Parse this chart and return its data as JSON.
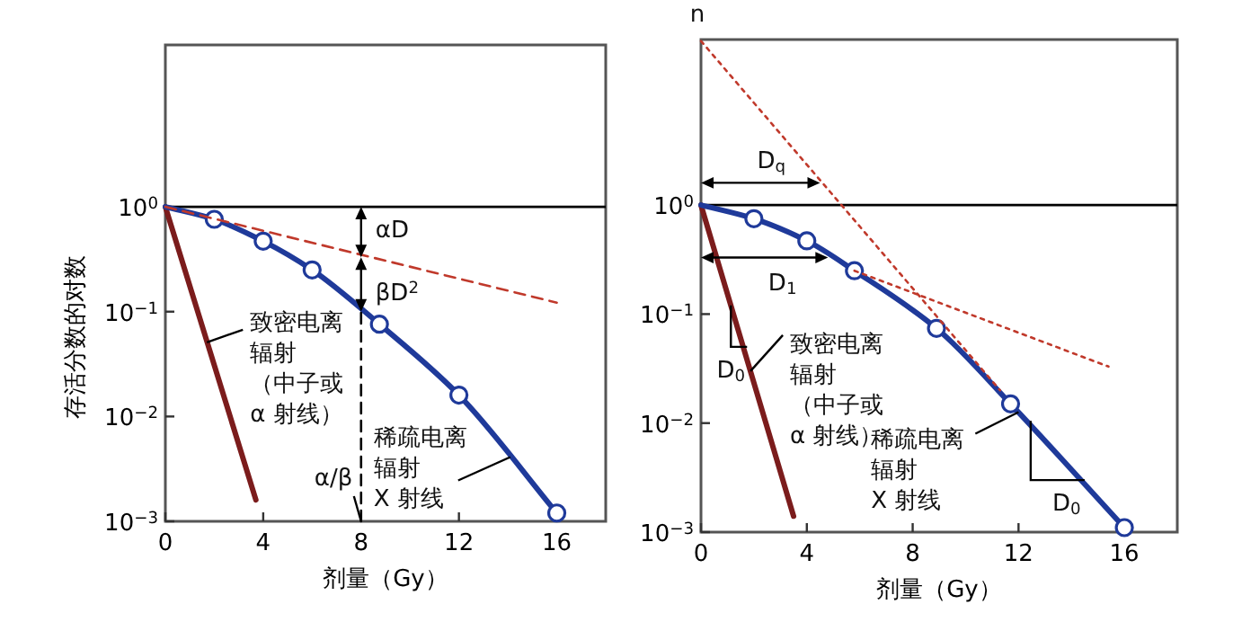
{
  "chart_data": [
    {
      "type": "line",
      "xlabel": "剂量（Gy）",
      "ylabel": "存活分数的对数",
      "log": "y",
      "xlim": [
        0,
        18
      ],
      "ylim": [
        0.001,
        35
      ],
      "xticks": [
        0,
        4,
        8,
        12,
        16
      ],
      "yticks": [
        {
          "value": 1,
          "label": "10$^{0}$"
        },
        {
          "value": 0.1,
          "label": "10$^{−1}$"
        },
        {
          "value": 0.01,
          "label": "10$^{−2}$"
        },
        {
          "value": 0.001,
          "label": "10$^{−3}$"
        }
      ],
      "ref_lines": [
        {
          "axis": "y",
          "value": 1,
          "color": "#000000",
          "line_style": "solid"
        }
      ],
      "series": [
        {
          "type": "line",
          "color": "#7b1c1c",
          "line_style": "solid",
          "x": [
            0,
            3.7
          ],
          "values": [
            1,
            0.0016
          ]
        },
        {
          "type": "line",
          "color": "#1f3a9a",
          "line_style": "solid",
          "x": [
            0,
            2,
            4,
            6,
            8.75,
            12,
            16
          ],
          "values": [
            1,
            0.76,
            0.47,
            0.25,
            0.076,
            0.016,
            0.0012
          ]
        },
        {
          "type": "scatter",
          "color": "#1f3a9a",
          "marker": "circle",
          "x": [
            2,
            4,
            6,
            8.75,
            12,
            16
          ],
          "values": [
            0.76,
            0.47,
            0.25,
            0.076,
            0.016,
            0.0012
          ]
        },
        {
          "type": "line",
          "color": "#c0392b",
          "line_style": "dashed",
          "x": [
            0,
            16
          ],
          "values": [
            1,
            0.122
          ]
        },
        {
          "type": "line",
          "color": "#000000",
          "line_style": "dashed",
          "x": [
            8,
            8
          ],
          "values": [
            0.001,
            0.1
          ]
        }
      ],
      "annotations": [
        {
          "text": "αD",
          "x": 8,
          "y": 0.33
        },
        {
          "text": "βD$^{2}$",
          "x": 8,
          "y": 0.1
        },
        {
          "text": "α/β",
          "x": 8,
          "y": 0.001
        },
        {
          "text": "致密电离辐射（中子或α 射线）",
          "x": 1.7,
          "y": 0.051
        },
        {
          "text": "稀疏电离辐射X 射线",
          "x": 14.1,
          "y": 0.0041
        }
      ]
    },
    {
      "type": "line",
      "xlabel": "剂量（Gy）",
      "log": "y",
      "xlim": [
        0,
        18
      ],
      "ylim": [
        0.001,
        33
      ],
      "xticks": [
        0,
        4,
        8,
        12,
        16
      ],
      "yticks": [
        {
          "value": 1,
          "label": "10$^{0}$"
        },
        {
          "value": 0.1,
          "label": "10$^{−1}$"
        },
        {
          "value": 0.01,
          "label": "10$^{−2}$"
        },
        {
          "value": 0.001,
          "label": "10$^{−3}$"
        }
      ],
      "ref_lines": [
        {
          "axis": "y",
          "value": 1,
          "color": "#000000",
          "line_style": "solid"
        }
      ],
      "series": [
        {
          "type": "line",
          "color": "#7b1c1c",
          "line_style": "solid",
          "x": [
            0,
            3.5
          ],
          "values": [
            1,
            0.0014
          ]
        },
        {
          "type": "line",
          "color": "#1f3a9a",
          "line_style": "solid",
          "x": [
            0,
            2,
            4,
            5.8,
            8.9,
            11.7,
            16
          ],
          "values": [
            1,
            0.75,
            0.47,
            0.25,
            0.074,
            0.015,
            0.0011
          ]
        },
        {
          "type": "scatter",
          "color": "#1f3a9a",
          "marker": "circle",
          "x": [
            2,
            4,
            5.8,
            8.9,
            11.7,
            16
          ],
          "values": [
            0.75,
            0.47,
            0.25,
            0.074,
            0.015,
            0.0011
          ]
        },
        {
          "type": "line",
          "color": "#c0392b",
          "line_style": "dotted",
          "x": [
            0,
            11.3
          ],
          "values": [
            32,
            0.02
          ]
        },
        {
          "type": "line",
          "color": "#c0392b",
          "line_style": "dotted",
          "x": [
            5.8,
            15.4
          ],
          "values": [
            0.25,
            0.033
          ]
        }
      ],
      "annotations": [
        {
          "text": "n",
          "x": 0,
          "y": 32
        },
        {
          "text": "D$_{q}$",
          "x": 4.5,
          "y": 1.6
        },
        {
          "text": "D$_{1}$",
          "x": 4.8,
          "y": 0.33
        },
        {
          "text": "D$_{0}$",
          "x": 1.13,
          "y": 0.12
        },
        {
          "text": "D$_{0}$",
          "x": 12.46,
          "y": 0.0105
        },
        {
          "text": "致密电离辐射（中子或α 射线）",
          "x": 1.87,
          "y": 0.03
        },
        {
          "text": "稀疏电离辐射X 射线",
          "x": 12,
          "y": 0.0126
        }
      ]
    }
  ]
}
